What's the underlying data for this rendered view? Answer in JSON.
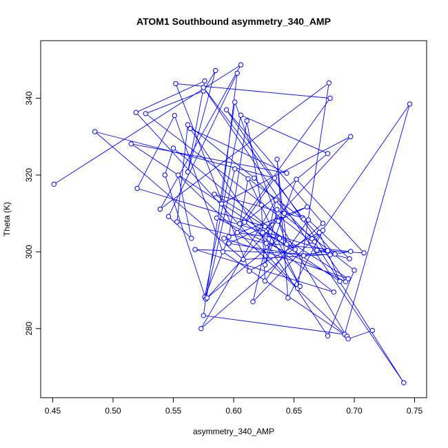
{
  "chart_data": {
    "type": "scatter",
    "title": "ATOM1 Southbound asymmetry_340_AMP",
    "xlabel": "asymmetry_340_AMP",
    "ylabel": "Theta (K)",
    "xlim": [
      0.44,
      0.76
    ],
    "ylim": [
      262,
      355
    ],
    "x_ticks": [
      0.45,
      0.5,
      0.55,
      0.6,
      0.65,
      0.7,
      0.75
    ],
    "x_tick_labels": [
      "0.45",
      "0.50",
      "0.55",
      "0.60",
      "0.65",
      "0.70",
      "0.75"
    ],
    "y_ticks": [
      280,
      300,
      320,
      340
    ],
    "y_tick_labels": [
      "280",
      "300",
      "320",
      "340"
    ],
    "grid": false,
    "legend": "none",
    "marker": "open-circle",
    "connect_points": true,
    "color": "#0000ff",
    "series": [
      {
        "x": [
          0.451,
          0.606,
          0.539,
          0.679,
          0.653,
          0.519,
          0.576,
          0.562,
          0.585,
          0.575,
          0.527,
          0.664,
          0.665,
          0.617,
          0.562,
          0.553,
          0.627,
          0.697,
          0.68,
          0.568,
          0.683,
          0.609,
          0.678,
          0.606,
          0.576,
          0.596,
          0.611,
          0.623,
          0.626,
          0.662,
          0.696,
          0.669,
          0.708,
          0.652,
          0.626,
          0.636,
          0.7,
          0.678,
          0.564,
          0.644,
          0.515,
          0.688,
          0.671,
          0.616,
          0.635,
          0.573,
          0.674,
          0.594,
          0.693,
          0.586,
          0.678,
          0.658,
          0.596,
          0.661,
          0.592,
          0.695,
          0.584,
          0.657,
          0.575,
          0.741,
          0.667,
          0.746,
          0.692,
          0.575,
          0.601,
          0.644,
          0.641,
          0.636,
          0.645,
          0.674,
          0.613,
          0.552,
          0.68,
          0.605,
          0.612,
          0.655,
          0.626,
          0.52,
          0.551,
          0.591,
          0.694,
          0.554,
          0.565,
          0.546,
          0.603,
          0.59,
          0.697,
          0.624,
          0.651,
          0.55,
          0.543,
          0.577,
          0.601,
          0.658,
          0.684,
          0.608,
          0.485,
          0.634,
          0.603,
          0.638,
          0.578,
          0.642,
          0.637,
          0.695,
          0.715
        ],
        "y": [
          317.6,
          348.7,
          311.1,
          344.0,
          290.5,
          336.3,
          344.5,
          320.8,
          347.2,
          341.9,
          336.0,
          302.8,
          303.4,
          319.2,
          333.1,
          307.8,
          302.2,
          300.1,
          299.2,
          300.6,
          289.5,
          307.7,
          325.6,
          335.6,
          288.2,
          303.9,
          334.1,
          312.2,
          292.4,
          308.3,
          298.2,
          300.4,
          299.7,
          318.9,
          296.6,
          311.0,
          295.2,
          278.1,
          332.1,
          320.5,
          328.1,
          292.3,
          305.0,
          287.0,
          313.5,
          280.0,
          307.4,
          337.0,
          292.2,
          308.8,
          300.3,
          299.0,
          302.2,
          311.7,
          303.5,
          293.0,
          315.0,
          308.9,
          342.8,
          265.9,
          302.6,
          338.5,
          278.5,
          283.4,
          339.0,
          302.0,
          309.5,
          324.1,
          288.0,
          305.6,
          295.0,
          343.8,
          340.0,
          307.3,
          319.0,
          291.0,
          306.6,
          316.5,
          335.5,
          300.0,
          278.0,
          320.0,
          303.5,
          309.2,
          346.5,
          312.5,
          330.0,
          305.0,
          300.6,
          327.0,
          320.0,
          287.7,
          321.6,
          308.5,
          299.4,
          298.0,
          331.3,
          319.2,
          305.0,
          303.5,
          288.0,
          310.0,
          308.0,
          277.3,
          279.5
        ]
      }
    ]
  }
}
